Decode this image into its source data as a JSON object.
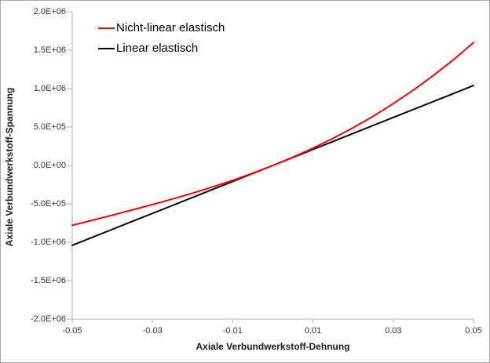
{
  "window": {
    "background": "#FFFFFF",
    "border_color": "#A6A6A6"
  },
  "chart_data": {
    "type": "line",
    "title": "",
    "xlabel": "Axiale Verbundwerkstoff-Dehnung",
    "ylabel": "Axiale Verbundwerkstoff-Spannung",
    "xlim": [
      -0.05,
      0.05
    ],
    "ylim": [
      -2000000,
      2000000
    ],
    "grid": false,
    "legend_position": "top-left-inside",
    "axis_color": "#BFBFBF",
    "tick_label_color": "#333333",
    "x_tick_values": [
      -0.05,
      -0.03,
      -0.01,
      0.01,
      0.03,
      0.05
    ],
    "x_tick_labels": [
      "-0.05",
      "-0.03",
      "-0.01",
      "0.01",
      "0.03",
      "0.05"
    ],
    "y_tick_values": [
      2000000,
      1500000,
      1000000,
      500000,
      0,
      -500000,
      -1000000,
      -1500000,
      -2000000
    ],
    "y_tick_labels": [
      "2.0E+06",
      "1.5E+06",
      "1.0E+06",
      "5.0E+05",
      "0.0E+00",
      "-5.0E+05",
      "-1.0E+06",
      "-1.5E+06",
      "-2.0E+06"
    ],
    "x": [
      -0.05,
      -0.045,
      -0.04,
      -0.035,
      -0.03,
      -0.025,
      -0.02,
      -0.015,
      -0.01,
      -0.005,
      0.0,
      0.005,
      0.01,
      0.015,
      0.02,
      0.025,
      0.03,
      0.035,
      0.04,
      0.045,
      0.05
    ],
    "series": [
      {
        "name": "Nicht-linear elastisch",
        "color": "#FF0000",
        "values": [
          -780000,
          -713000,
          -647000,
          -578000,
          -509000,
          -436000,
          -360000,
          -279000,
          -193000,
          -100000,
          0,
          108000,
          226000,
          353000,
          491000,
          641000,
          804000,
          981000,
          1171000,
          1377000,
          1600000
        ]
      },
      {
        "name": "Linear elastisch",
        "color": "#000000",
        "values": [
          -1040000,
          -936000,
          -832000,
          -728000,
          -624000,
          -520000,
          -416000,
          -312000,
          -208000,
          -104000,
          0,
          104000,
          208000,
          312000,
          416000,
          520000,
          624000,
          728000,
          832000,
          936000,
          1040000
        ]
      }
    ]
  }
}
